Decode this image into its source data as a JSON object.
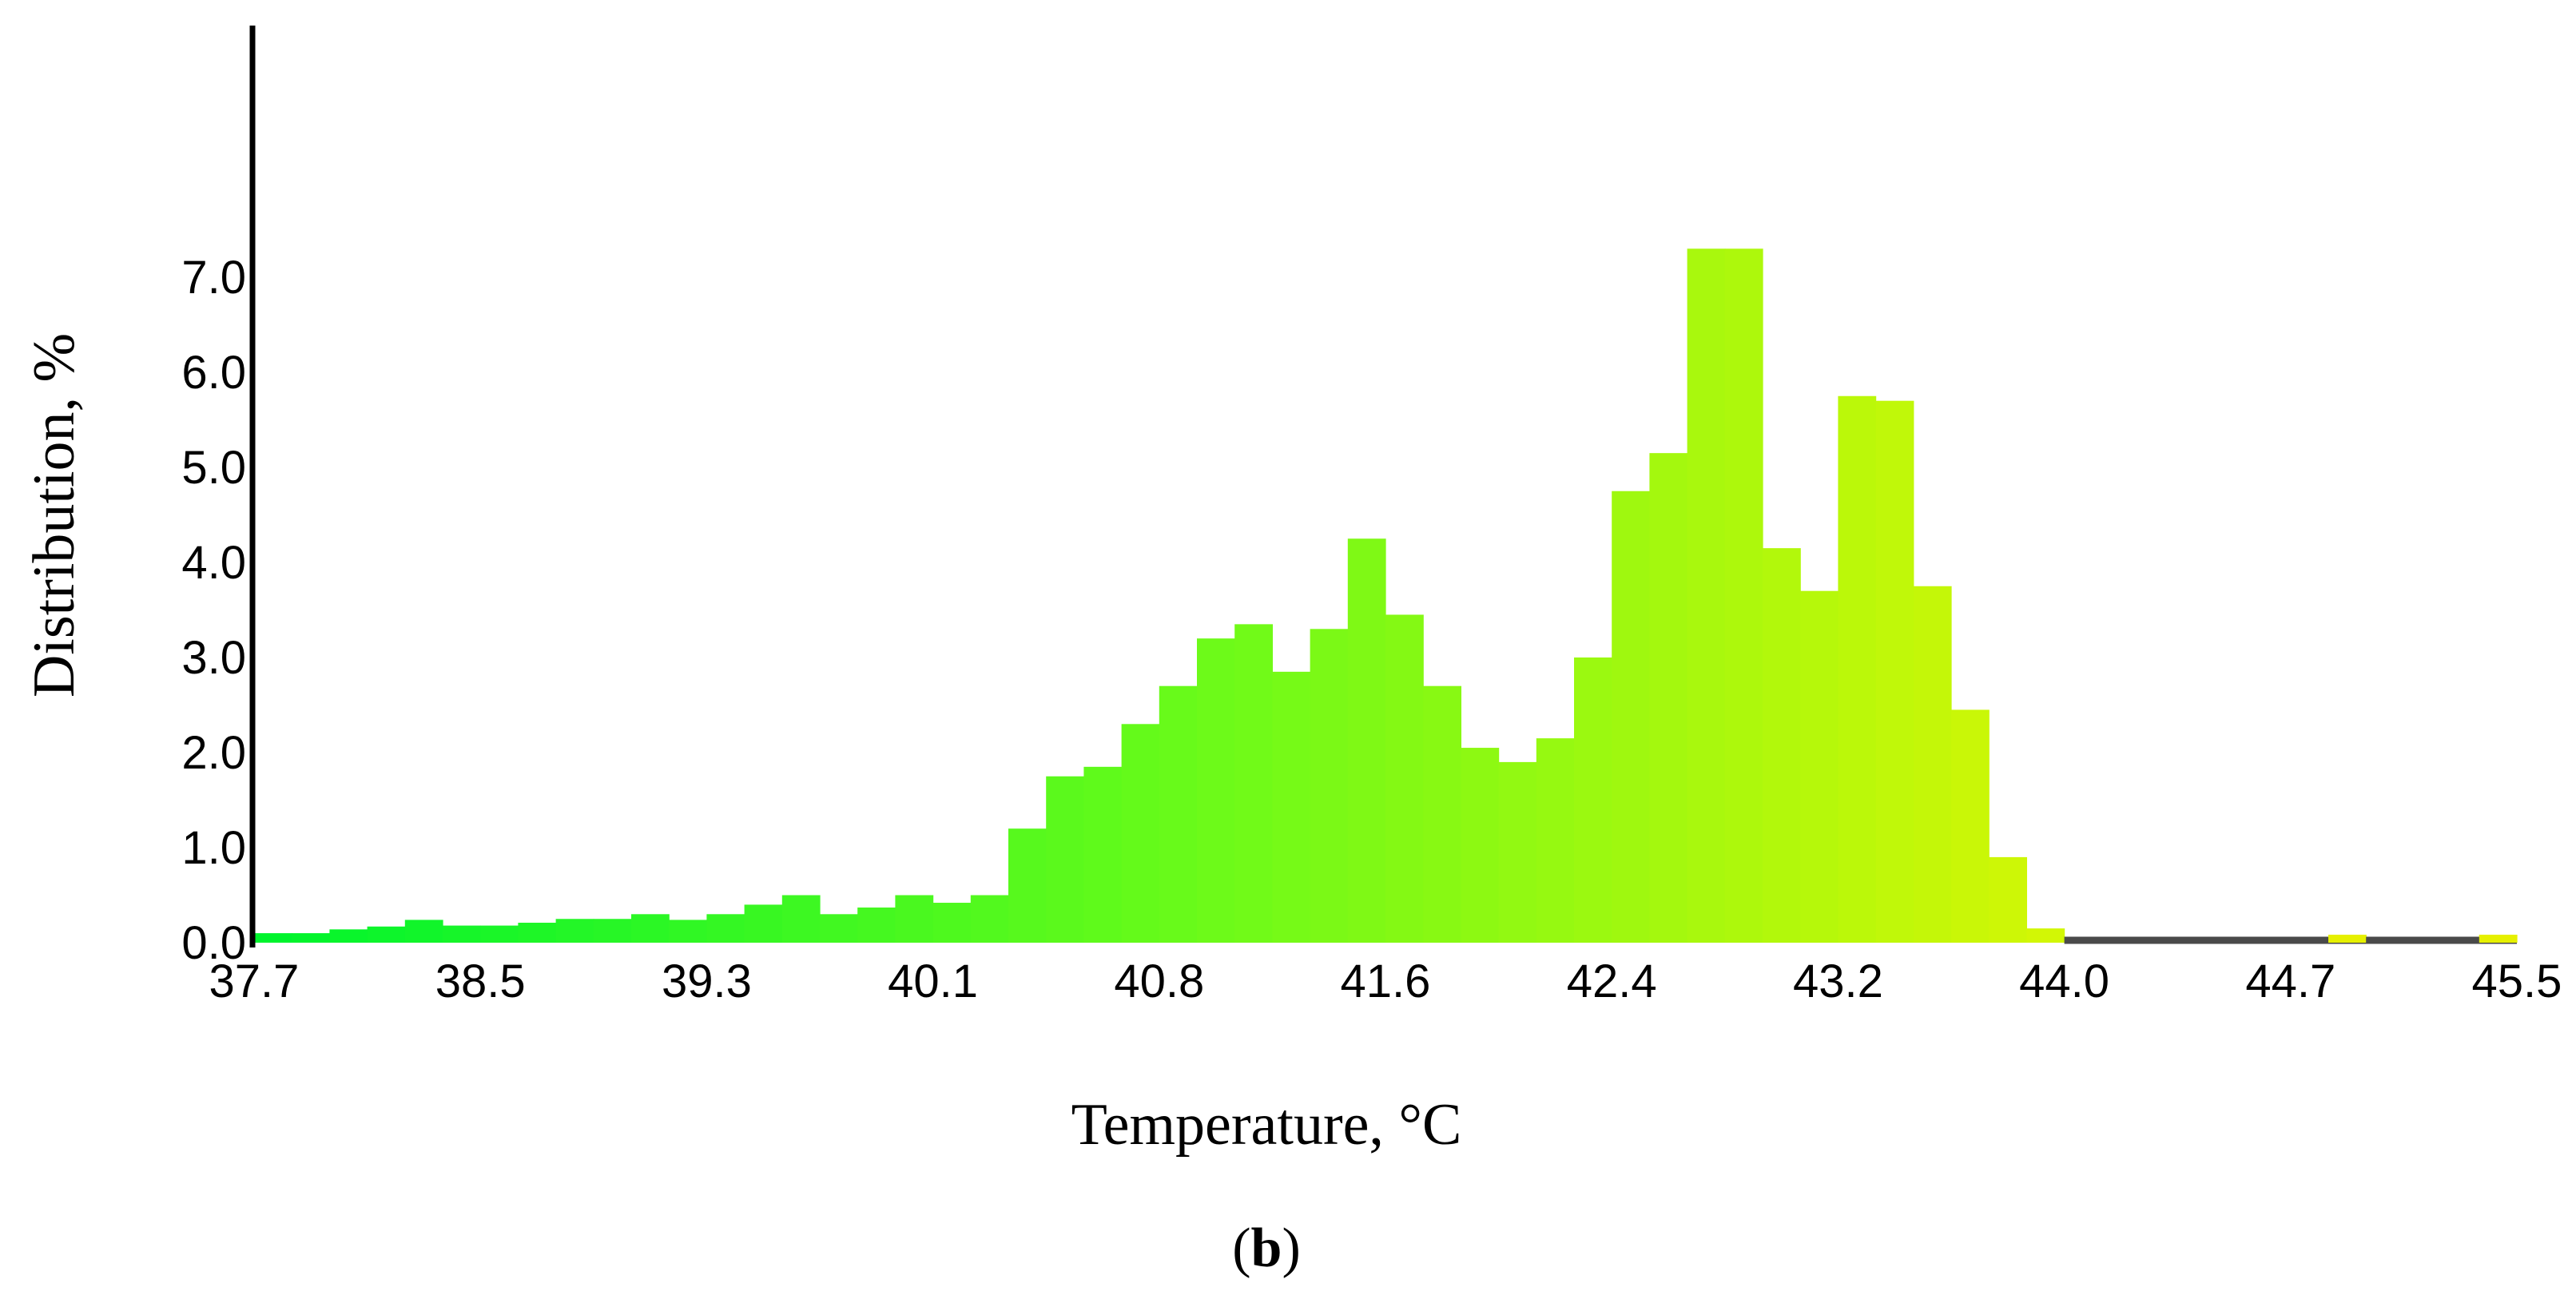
{
  "chart_data": {
    "type": "bar",
    "xlabel": "Temperature, °C",
    "ylabel": "Distribution, %",
    "xlim": [
      37.7,
      45.5
    ],
    "ylim": [
      0,
      7.3
    ],
    "x_ticks": [
      "37.7",
      "38.5",
      "39.3",
      "40.1",
      "40.8",
      "41.6",
      "42.4",
      "43.2",
      "44.0",
      "44.7",
      "45.5"
    ],
    "y_ticks": [
      "0.0",
      "1.0",
      "2.0",
      "3.0",
      "4.0",
      "5.0",
      "6.0",
      "7.0"
    ],
    "grid": false,
    "legend": "none",
    "bin_width": 0.13,
    "bin_start": 37.7,
    "values": [
      0.1,
      0.1,
      0.14,
      0.17,
      0.24,
      0.18,
      0.18,
      0.21,
      0.25,
      0.25,
      0.3,
      0.24,
      0.3,
      0.4,
      0.5,
      0.3,
      0.37,
      0.5,
      0.42,
      0.5,
      1.2,
      1.75,
      1.85,
      2.3,
      2.7,
      3.2,
      3.35,
      2.85,
      3.3,
      4.25,
      3.45,
      2.7,
      2.05,
      1.9,
      2.15,
      3.0,
      4.75,
      5.15,
      7.3,
      7.3,
      4.15,
      3.7,
      5.75,
      5.7,
      3.75,
      2.45,
      0.9,
      0.15,
      0.0,
      0.0,
      0.0,
      0.0,
      0.0,
      0.0,
      0.0,
      0.05,
      0.0,
      0.0,
      0.0,
      0.05
    ],
    "colors": {
      "low": "#00f42d",
      "mid": "#66fa1a",
      "high": "#d2f705",
      "outlier": "#e6f000",
      "axis": "#000000",
      "baseline": "#4a4a4a"
    }
  },
  "panel_label": "b"
}
